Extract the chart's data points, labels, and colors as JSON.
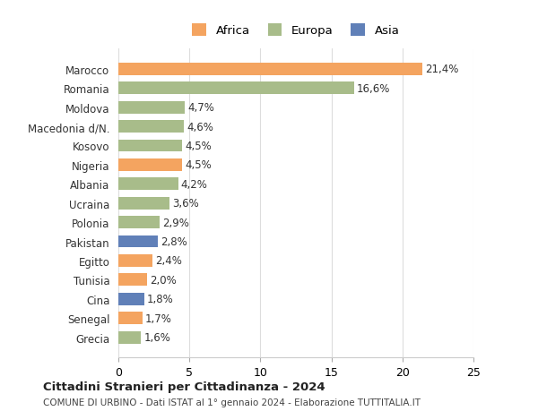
{
  "countries": [
    "Marocco",
    "Romania",
    "Moldova",
    "Macedonia d/N.",
    "Kosovo",
    "Nigeria",
    "Albania",
    "Ucraina",
    "Polonia",
    "Pakistan",
    "Egitto",
    "Tunisia",
    "Cina",
    "Senegal",
    "Grecia"
  ],
  "values": [
    21.4,
    16.6,
    4.7,
    4.6,
    4.5,
    4.5,
    4.2,
    3.6,
    2.9,
    2.8,
    2.4,
    2.0,
    1.8,
    1.7,
    1.6
  ],
  "labels": [
    "21,4%",
    "16,6%",
    "4,7%",
    "4,6%",
    "4,5%",
    "4,5%",
    "4,2%",
    "3,6%",
    "2,9%",
    "2,8%",
    "2,4%",
    "2,0%",
    "1,8%",
    "1,7%",
    "1,6%"
  ],
  "continents": [
    "Africa",
    "Europa",
    "Europa",
    "Europa",
    "Europa",
    "Africa",
    "Europa",
    "Europa",
    "Europa",
    "Asia",
    "Africa",
    "Africa",
    "Asia",
    "Africa",
    "Europa"
  ],
  "colors": {
    "Africa": "#F4A460",
    "Europa": "#A8BC8A",
    "Asia": "#6080B8"
  },
  "legend_colors": {
    "Africa": "#F4A460",
    "Europa": "#A8BC8A",
    "Asia": "#6080B8"
  },
  "xlim": [
    0,
    25
  ],
  "xticks": [
    0,
    5,
    10,
    15,
    20,
    25
  ],
  "title": "Cittadini Stranieri per Cittadinanza - 2024",
  "subtitle": "COMUNE DI URBINO - Dati ISTAT al 1° gennaio 2024 - Elaborazione TUTTITALIA.IT",
  "background_color": "#ffffff",
  "bar_edge_color": "none",
  "grid_color": "#dddddd",
  "figsize": [
    6.0,
    4.6
  ],
  "dpi": 100
}
